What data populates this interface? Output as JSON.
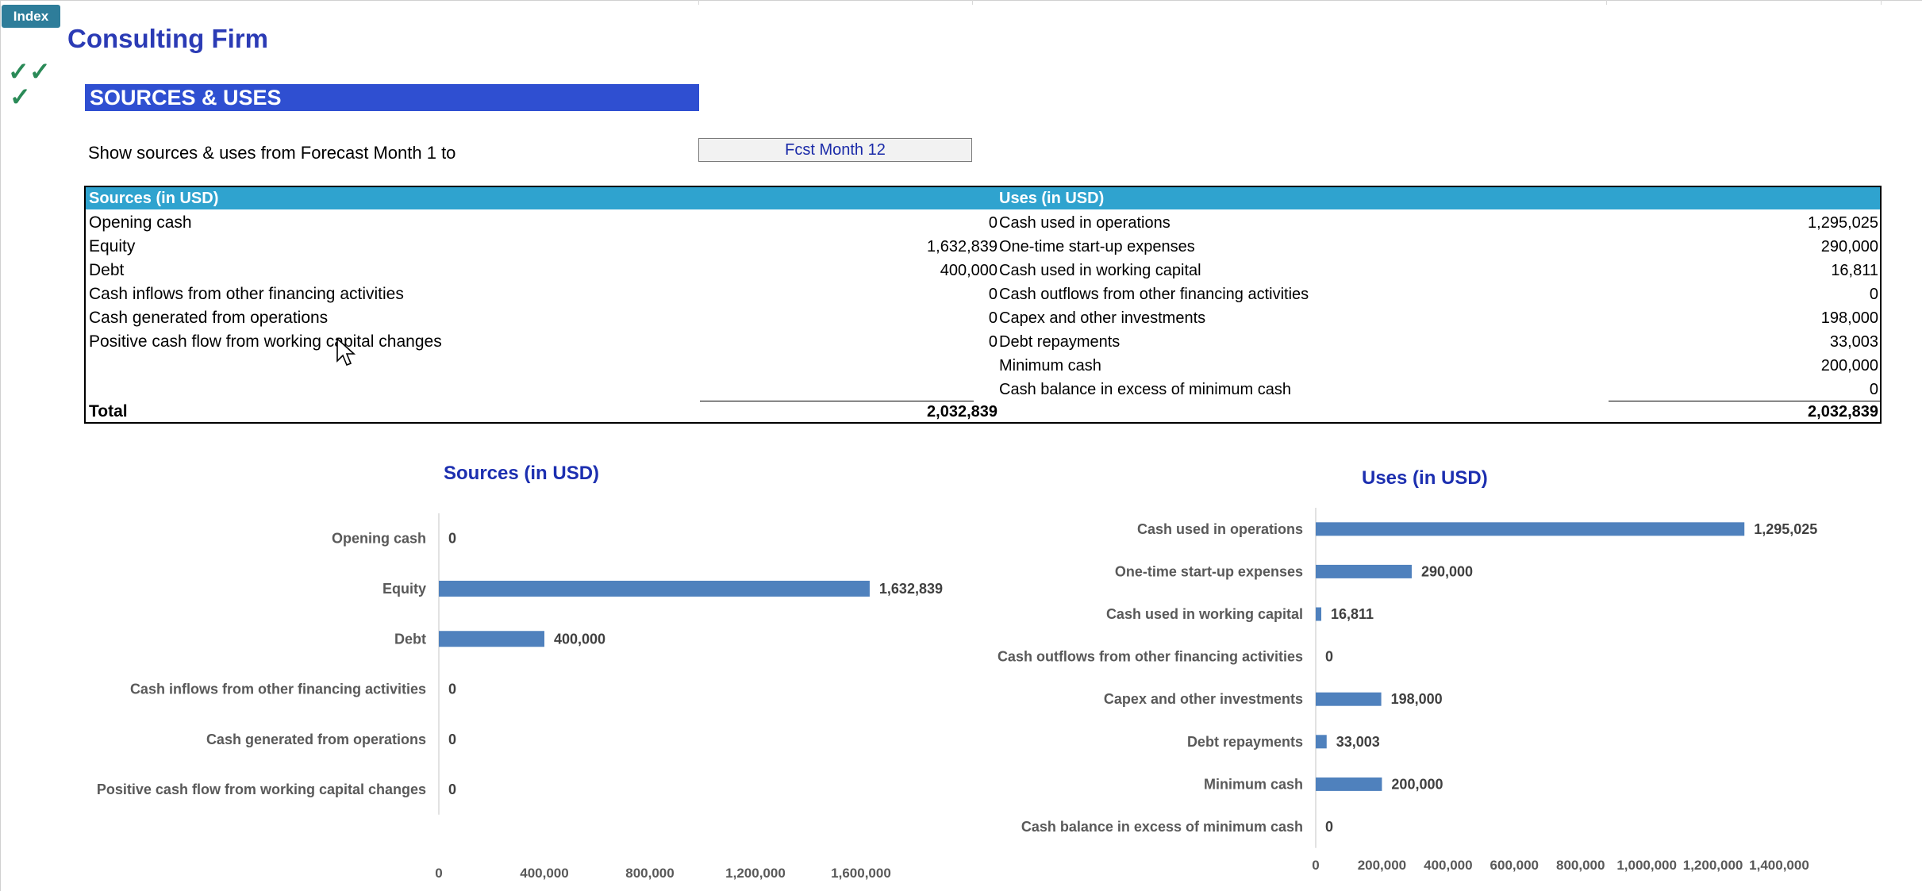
{
  "index_button": "Index",
  "company": "Consulting Firm",
  "checkmarks": [
    "✓✓",
    "✓"
  ],
  "section_title": "SOURCES & USES",
  "range": {
    "label": "Show sources & uses from Forecast Month 1 to",
    "selected": "Fcst Month 12"
  },
  "table": {
    "sources_header": "Sources (in USD)",
    "uses_header": "Uses (in USD)",
    "sources": [
      {
        "label": "Opening cash",
        "value": "0"
      },
      {
        "label": "Equity",
        "value": "1,632,839"
      },
      {
        "label": "Debt",
        "value": "400,000"
      },
      {
        "label": "Cash inflows from other financing activities",
        "value": "0"
      },
      {
        "label": "Cash generated from operations",
        "value": "0"
      },
      {
        "label": "Positive cash flow from working capital changes",
        "value": "0"
      }
    ],
    "uses": [
      {
        "label": "Cash used in operations",
        "value": "1,295,025"
      },
      {
        "label": "One-time start-up expenses",
        "value": "290,000"
      },
      {
        "label": "Cash used in working capital",
        "value": "16,811"
      },
      {
        "label": "Cash outflows from other  financing activities",
        "value": "0"
      },
      {
        "label": "Capex and other investments",
        "value": "198,000"
      },
      {
        "label": "Debt repayments",
        "value": "33,003"
      },
      {
        "label": "Minimum cash",
        "value": "200,000"
      },
      {
        "label": "Cash balance in excess of minimum cash",
        "value": "0"
      }
    ],
    "total_label": "Total",
    "sources_total": "2,032,839",
    "uses_total": "2,032,839"
  },
  "colors": {
    "bar": "#4f81bd",
    "title": "#1c2fb0",
    "header": "#2fa3cf",
    "section": "#2f4fd1"
  },
  "chart_data": [
    {
      "type": "bar",
      "orientation": "horizontal",
      "title": "Sources (in USD)",
      "categories": [
        "Opening cash",
        "Equity",
        "Debt",
        "Cash inflows from other financing activities",
        "Cash generated from operations",
        "Positive cash flow from working capital changes"
      ],
      "values": [
        0,
        1632839,
        400000,
        0,
        0,
        0
      ],
      "data_labels": [
        "0",
        "1,632,839",
        "400,000",
        "0",
        "0",
        "0"
      ],
      "xlim": [
        0,
        1600000
      ],
      "ticks": [
        0,
        400000,
        800000,
        1200000,
        1600000
      ],
      "tick_labels": [
        "0",
        "400,000",
        "800,000",
        "1,200,000",
        "1,600,000"
      ],
      "grid": false
    },
    {
      "type": "bar",
      "orientation": "horizontal",
      "title": "Uses (in USD)",
      "categories": [
        "Cash used in operations",
        "One-time start-up expenses",
        "Cash used in working capital",
        "Cash outflows from other  financing activities",
        "Capex and other investments",
        "Debt repayments",
        "Minimum cash",
        "Cash balance in excess of minimum cash"
      ],
      "values": [
        1295025,
        290000,
        16811,
        0,
        198000,
        33003,
        200000,
        0
      ],
      "data_labels": [
        "1,295,025",
        "290,000",
        "16,811",
        "0",
        "198,000",
        "33,003",
        "200,000",
        "0"
      ],
      "xlim": [
        0,
        1400000
      ],
      "ticks": [
        0,
        200000,
        400000,
        600000,
        800000,
        1000000,
        1200000,
        1400000
      ],
      "tick_labels": [
        "0",
        "200,000",
        "400,000",
        "600,000",
        "800,000",
        "1,000,000",
        "1,200,000",
        "1,400,000"
      ],
      "grid": false
    }
  ]
}
